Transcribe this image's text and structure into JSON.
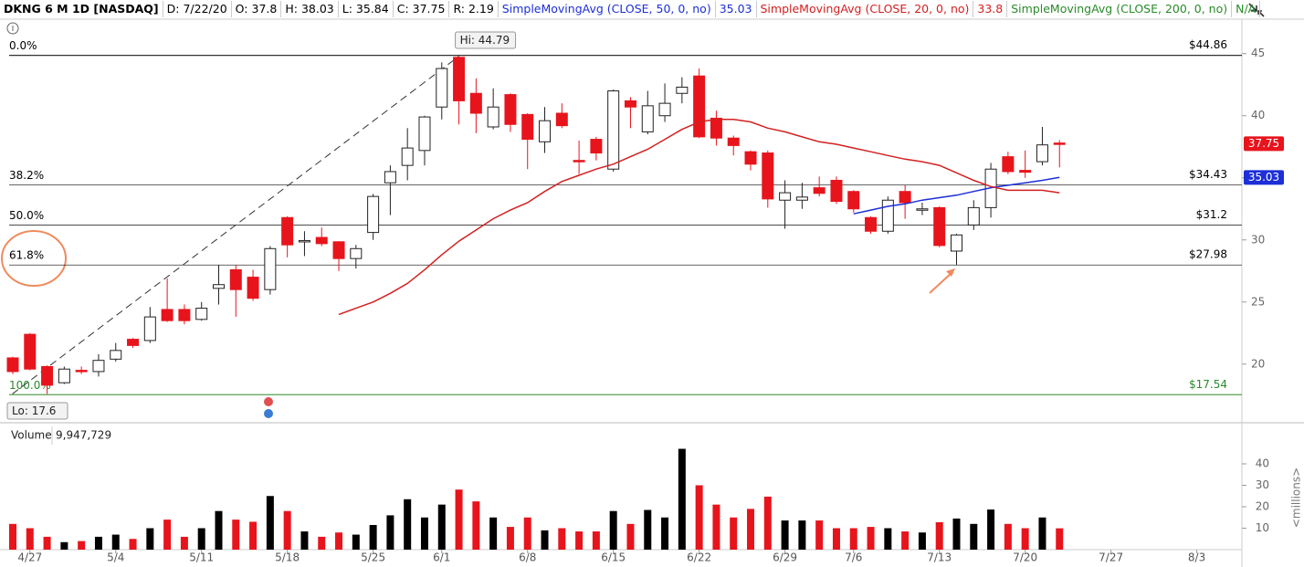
{
  "chart_data": {
    "type": "candlestick",
    "header": {
      "symbol": "DKNG 6 M 1D [NASDAQ]",
      "date_label": "D:",
      "date": "7/22/20",
      "open_label": "O:",
      "high_label": "H:",
      "low_label": "L:",
      "close_label": "C:",
      "range_label": "R:",
      "range": 2.19
    },
    "open": [
      20.5,
      22.4,
      19.8,
      18.5,
      19.5,
      19.4,
      20.4,
      22.0,
      21.9,
      24.4,
      24.4,
      23.6,
      26.1,
      27.6,
      27.0,
      26.0,
      31.8,
      29.9,
      30.2,
      29.85,
      28.5,
      30.6,
      34.6,
      36.0,
      37.2,
      40.7,
      44.7,
      41.8,
      39.1,
      41.7,
      40.1,
      37.9,
      40.2,
      36.4,
      38.1,
      35.7,
      41.2,
      38.7,
      40.0,
      41.8,
      43.2,
      39.8,
      38.2,
      37.1,
      37.0,
      33.2,
      33.2,
      34.2,
      34.8,
      33.9,
      31.8,
      30.7,
      33.9,
      32.5,
      32.6,
      29.1,
      31.2,
      32.6,
      36.7,
      35.6,
      36.3,
      37.8
    ],
    "high": [
      20.6,
      22.5,
      19.9,
      19.8,
      19.8,
      20.8,
      21.7,
      22.1,
      24.6,
      26.9,
      24.8,
      25.0,
      28.0,
      28.0,
      27.6,
      29.5,
      31.9,
      30.7,
      31.0,
      29.9,
      29.6,
      33.7,
      36.0,
      39.0,
      40.0,
      44.3,
      44.79,
      43.0,
      42.2,
      41.8,
      40.2,
      40.7,
      41.0,
      38.0,
      38.3,
      42.1,
      41.5,
      42.0,
      42.6,
      43.1,
      43.8,
      40.4,
      38.4,
      37.2,
      37.2,
      34.8,
      34.6,
      35.1,
      35.1,
      34.0,
      31.9,
      33.5,
      34.4,
      33.0,
      32.7,
      30.5,
      33.2,
      36.2,
      37.1,
      37.2,
      39.1,
      38.03
    ],
    "low": [
      19.2,
      19.5,
      17.6,
      18.4,
      19.2,
      19.0,
      20.2,
      21.3,
      21.7,
      23.4,
      23.2,
      23.5,
      24.8,
      23.8,
      25.1,
      25.6,
      28.6,
      28.7,
      29.5,
      27.5,
      27.7,
      30.0,
      32.0,
      34.8,
      36.0,
      39.7,
      39.3,
      38.6,
      38.9,
      38.7,
      35.7,
      37.0,
      39.0,
      35.3,
      36.4,
      35.5,
      39.0,
      38.5,
      39.5,
      41.0,
      38.2,
      37.6,
      36.8,
      35.6,
      32.6,
      30.9,
      32.5,
      33.5,
      32.9,
      32.2,
      30.5,
      30.5,
      31.7,
      32.0,
      29.4,
      28.0,
      30.8,
      31.8,
      35.3,
      35.0,
      36.0,
      35.84
    ],
    "close": [
      19.4,
      19.6,
      18.3,
      19.6,
      19.45,
      20.3,
      21.1,
      21.5,
      23.8,
      23.5,
      23.5,
      24.5,
      26.4,
      26.0,
      25.3,
      29.3,
      29.6,
      29.95,
      29.7,
      28.5,
      29.3,
      33.5,
      35.5,
      37.4,
      39.9,
      43.8,
      41.2,
      40.2,
      40.7,
      39.3,
      38.1,
      39.6,
      39.2,
      36.3,
      37.0,
      42.0,
      40.7,
      40.8,
      41.0,
      42.3,
      38.3,
      38.2,
      37.6,
      36.1,
      33.3,
      33.8,
      33.45,
      33.75,
      33.1,
      32.5,
      30.7,
      33.2,
      33.0,
      32.5,
      29.55,
      30.4,
      32.6,
      35.7,
      35.5,
      35.45,
      37.65,
      37.75
    ],
    "up_color": "#ffffff",
    "down_color": "#e8141c",
    "series": [
      {
        "name": "SimpleMovingAvg (CLOSE, 50, 0, no)",
        "color": "#1c2fd8",
        "badge": true,
        "values": [
          null,
          null,
          null,
          null,
          null,
          null,
          null,
          null,
          null,
          null,
          null,
          null,
          null,
          null,
          null,
          null,
          null,
          null,
          null,
          null,
          null,
          null,
          null,
          null,
          null,
          null,
          null,
          null,
          null,
          null,
          null,
          null,
          null,
          null,
          null,
          null,
          null,
          null,
          null,
          null,
          null,
          null,
          null,
          null,
          null,
          null,
          null,
          null,
          null,
          32.1,
          32.4,
          32.7,
          32.9,
          33.2,
          33.4,
          33.6,
          33.9,
          34.2,
          34.4,
          34.6,
          34.8,
          35.03
        ]
      },
      {
        "name": "SimpleMovingAvg (CLOSE, 20, 0, no)",
        "color": "#d42020",
        "badge": false,
        "values": [
          null,
          null,
          null,
          null,
          null,
          null,
          null,
          null,
          null,
          null,
          null,
          null,
          null,
          null,
          null,
          null,
          null,
          null,
          null,
          24.0,
          24.5,
          25.0,
          25.7,
          26.5,
          27.6,
          28.8,
          29.9,
          30.8,
          31.7,
          32.4,
          33.0,
          33.9,
          34.7,
          35.2,
          35.7,
          36.1,
          36.7,
          37.3,
          38.1,
          38.9,
          39.5,
          39.7,
          39.7,
          39.5,
          39.0,
          38.7,
          38.3,
          37.9,
          37.7,
          37.4,
          37.1,
          36.8,
          36.5,
          36.3,
          36.0,
          35.4,
          34.8,
          34.3,
          34.0,
          34.0,
          34.0,
          33.8
        ]
      },
      {
        "name": "SimpleMovingAvg (CLOSE, 200, 0, no)",
        "color": "#2a8a2a",
        "last_label": "N/A"
      }
    ],
    "fib_levels": [
      {
        "pct": "0.0%",
        "value": 44.86,
        "label": "$44.86",
        "color": "#000000"
      },
      {
        "pct": "38.2%",
        "value": 34.43,
        "label": "$34.43",
        "color": "#000000"
      },
      {
        "pct": "50.0%",
        "value": 31.2,
        "label": "$31.2",
        "color": "#000000"
      },
      {
        "pct": "61.8%",
        "value": 27.98,
        "label": "$27.98",
        "color": "#000000"
      },
      {
        "pct": "100.0%",
        "value": 17.54,
        "label": "$17.54",
        "color": "#2a8a2a"
      }
    ],
    "hi_label": "Hi:",
    "lo_label": "Lo:",
    "ylim": [
      15.5,
      47.7
    ],
    "yticks": [
      20,
      25,
      30,
      35,
      40,
      45
    ],
    "xlim": [
      -0.745,
      71.63
    ],
    "xticks": [
      {
        "value": 1,
        "label": "4/27"
      },
      {
        "value": 6,
        "label": "5/4"
      },
      {
        "value": 11,
        "label": "5/11"
      },
      {
        "value": 16,
        "label": "5/18"
      },
      {
        "value": 21,
        "label": "5/25"
      },
      {
        "value": 25,
        "label": "6/1"
      },
      {
        "value": 30,
        "label": "6/8"
      },
      {
        "value": 35,
        "label": "6/15"
      },
      {
        "value": 40,
        "label": "6/22"
      },
      {
        "value": 45,
        "label": "6/29"
      },
      {
        "value": 49,
        "label": "7/6"
      },
      {
        "value": 54,
        "label": "7/13"
      },
      {
        "value": 59,
        "label": "7/20"
      },
      {
        "value": 64,
        "label": "7/27"
      },
      {
        "value": 69,
        "label": "8/3"
      }
    ],
    "volume": {
      "title": "Volume",
      "last_label": "9,947,729",
      "unit_label": "<millions>",
      "up_color": "#000000",
      "down_color": "#e8141c",
      "values": [
        12,
        10,
        6,
        3.5,
        4,
        6,
        7,
        5,
        10,
        14,
        6,
        10,
        18,
        14,
        13,
        25,
        18,
        8.5,
        6,
        8,
        7,
        11.5,
        16,
        23.5,
        15,
        21,
        28,
        22.5,
        15,
        10.6,
        15,
        9,
        10,
        8.5,
        8.5,
        18,
        12,
        18.5,
        15,
        47,
        30,
        21,
        15,
        19,
        24.7,
        13.6,
        13.6,
        13.6,
        10,
        10,
        10.6,
        10,
        8.5,
        8,
        12.8,
        14.5,
        12,
        18.7,
        12,
        10,
        15,
        9.947729
      ],
      "ylim": [
        0,
        58.3
      ],
      "yticks": [
        10,
        20,
        30,
        40
      ]
    }
  }
}
